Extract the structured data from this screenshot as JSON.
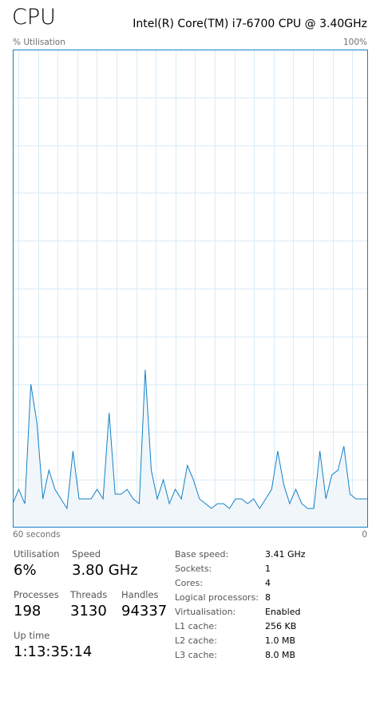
{
  "header": {
    "title": "CPU",
    "cpu_model": "Intel(R) Core(TM) i7-6700 CPU @ 3.40GHz"
  },
  "graph": {
    "y_axis_label": "% Utilisation",
    "y_max_label": "100%",
    "x_axis_label": "60 seconds",
    "x_min_label": "0",
    "line_color": "#1182c8",
    "fill_color": "#f1f6fa",
    "grid_color": "#d9ebf7",
    "border_color": "#1182c8"
  },
  "chart_data": {
    "type": "area",
    "x_range": [
      60,
      0
    ],
    "ylim": [
      0,
      100
    ],
    "grid": true,
    "values": [
      5,
      8,
      5,
      30,
      22,
      6,
      12,
      8,
      6,
      4,
      16,
      6,
      6,
      6,
      8,
      6,
      24,
      7,
      7,
      8,
      6,
      5,
      33,
      12,
      6,
      10,
      5,
      8,
      6,
      13,
      10,
      6,
      5,
      4,
      5,
      5,
      4,
      6,
      6,
      5,
      6,
      4,
      6,
      8,
      16,
      9,
      5,
      8,
      5,
      4,
      4,
      16,
      6,
      11,
      12,
      17,
      7,
      6,
      6,
      6
    ]
  },
  "stats": {
    "utilisation": {
      "label": "Utilisation",
      "value": "6%"
    },
    "speed": {
      "label": "Speed",
      "value": "3.80 GHz"
    },
    "processes": {
      "label": "Processes",
      "value": "198"
    },
    "threads": {
      "label": "Threads",
      "value": "3130"
    },
    "handles": {
      "label": "Handles",
      "value": "94337"
    },
    "uptime": {
      "label": "Up time",
      "value": "1:13:35:14"
    }
  },
  "specs": [
    {
      "label": "Base speed:",
      "value": "3.41 GHz"
    },
    {
      "label": "Sockets:",
      "value": "1"
    },
    {
      "label": "Cores:",
      "value": "4"
    },
    {
      "label": "Logical processors:",
      "value": "8"
    },
    {
      "label": "Virtualisation:",
      "value": "Enabled"
    },
    {
      "label": "L1 cache:",
      "value": "256 KB"
    },
    {
      "label": "L2 cache:",
      "value": "1.0 MB"
    },
    {
      "label": "L3 cache:",
      "value": "8.0 MB"
    }
  ]
}
